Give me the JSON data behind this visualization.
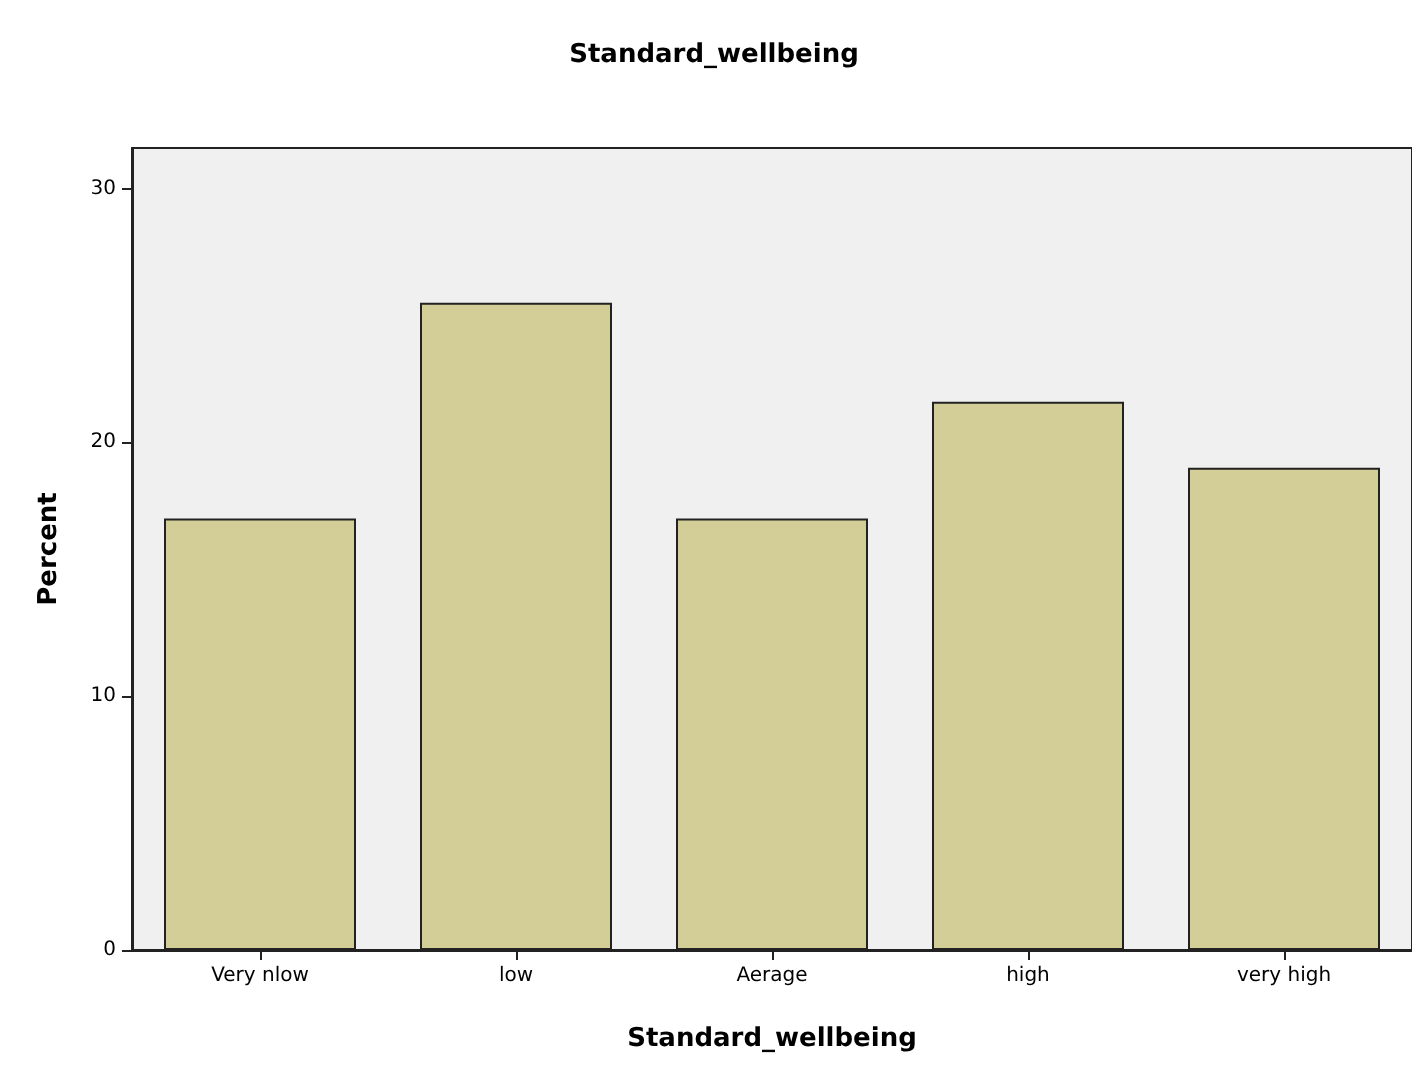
{
  "chart_data": {
    "type": "bar",
    "title": "Standard_wellbeing",
    "xlabel": "Standard_wellbeing",
    "ylabel": "Percent",
    "categories": [
      "Very nlow",
      "low",
      "Aerage",
      "high",
      "very high"
    ],
    "values": [
      17.0,
      25.5,
      17.0,
      21.6,
      19.0
    ],
    "color": "#d3ce97",
    "ylim": [
      0,
      31.6
    ],
    "yticks": [
      0,
      10,
      20,
      30
    ],
    "grid": false
  }
}
